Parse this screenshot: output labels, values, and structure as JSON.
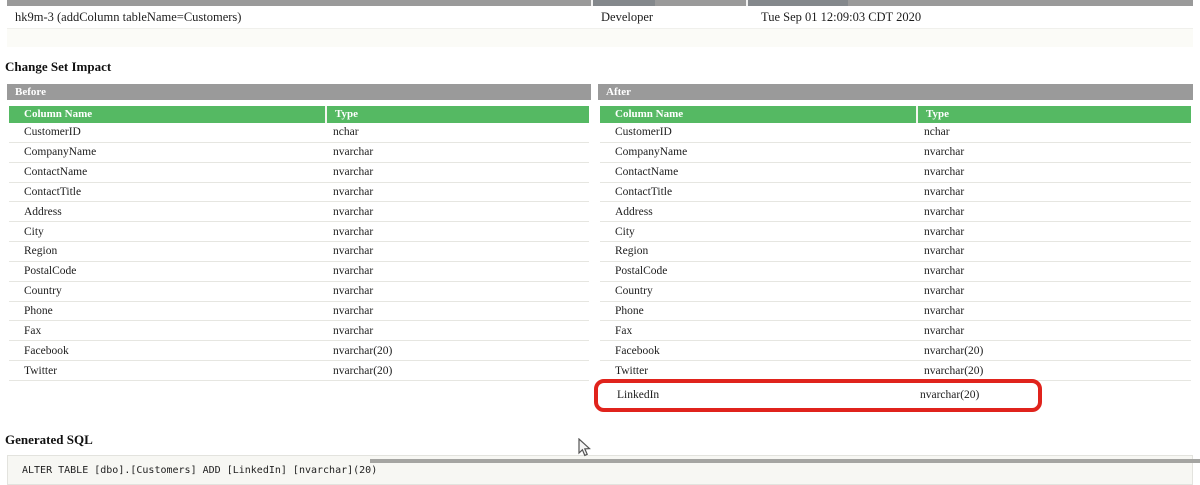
{
  "changeset": {
    "id": "hk9m-3 (addColumn tableName=Customers)",
    "author": "Developer",
    "date": "Tue Sep 01 12:09:03 CDT 2020"
  },
  "headings": {
    "impact": "Change Set Impact",
    "sql": "Generated SQL"
  },
  "before": {
    "title": "Before",
    "headers": [
      "Column Name",
      "Type"
    ],
    "rows": [
      [
        "CustomerID",
        "nchar"
      ],
      [
        "CompanyName",
        "nvarchar"
      ],
      [
        "ContactName",
        "nvarchar"
      ],
      [
        "ContactTitle",
        "nvarchar"
      ],
      [
        "Address",
        "nvarchar"
      ],
      [
        "City",
        "nvarchar"
      ],
      [
        "Region",
        "nvarchar"
      ],
      [
        "PostalCode",
        "nvarchar"
      ],
      [
        "Country",
        "nvarchar"
      ],
      [
        "Phone",
        "nvarchar"
      ],
      [
        "Fax",
        "nvarchar"
      ],
      [
        "Facebook",
        "nvarchar(20)"
      ],
      [
        "Twitter",
        "nvarchar(20)"
      ]
    ]
  },
  "after": {
    "title": "After",
    "headers": [
      "Column Name",
      "Type"
    ],
    "rows": [
      [
        "CustomerID",
        "nchar"
      ],
      [
        "CompanyName",
        "nvarchar"
      ],
      [
        "ContactName",
        "nvarchar"
      ],
      [
        "ContactTitle",
        "nvarchar"
      ],
      [
        "Address",
        "nvarchar"
      ],
      [
        "City",
        "nvarchar"
      ],
      [
        "Region",
        "nvarchar"
      ],
      [
        "PostalCode",
        "nvarchar"
      ],
      [
        "Country",
        "nvarchar"
      ],
      [
        "Phone",
        "nvarchar"
      ],
      [
        "Fax",
        "nvarchar"
      ],
      [
        "Facebook",
        "nvarchar(20)"
      ],
      [
        "Twitter",
        "nvarchar(20)"
      ]
    ],
    "highlighted_row": [
      "LinkedIn",
      "nvarchar(20)"
    ]
  },
  "sql": {
    "statement": "ALTER TABLE [dbo].[Customers] ADD [LinkedIn] [nvarchar](20)"
  },
  "colors": {
    "table_header_green": "#55b963",
    "section_bar_gray": "#9a9a9a",
    "highlight_red": "#e0231c"
  }
}
